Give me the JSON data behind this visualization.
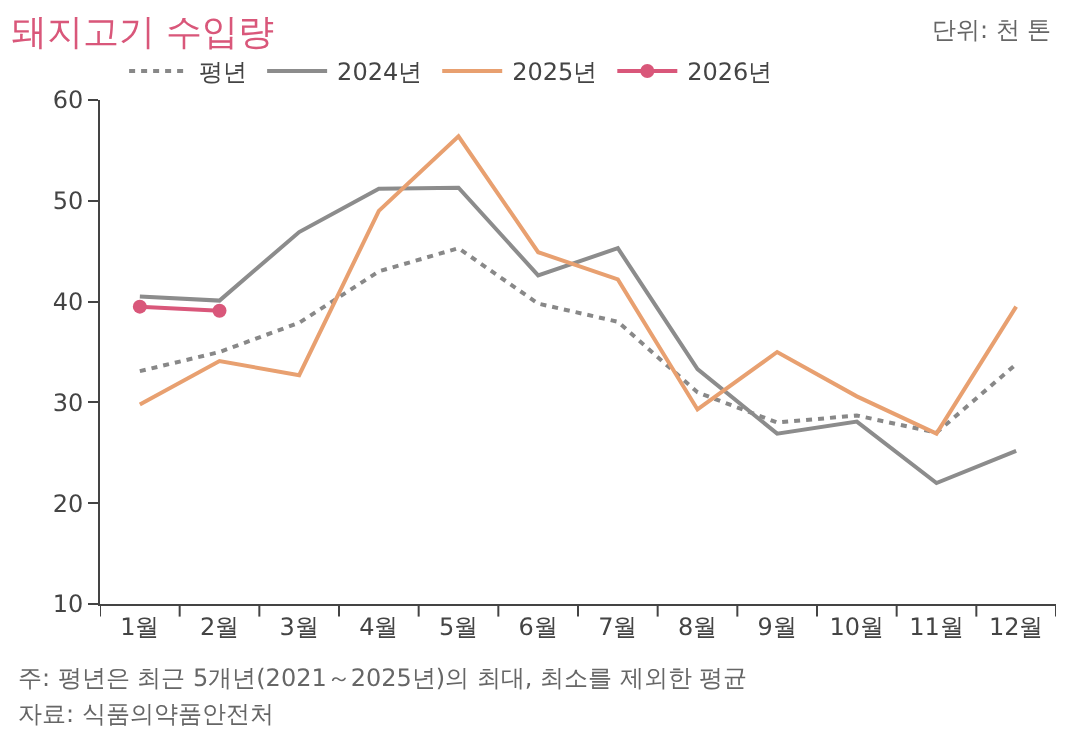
{
  "chart_data": {
    "type": "line",
    "title": "돼지고기 수입량",
    "categories": [
      "1월",
      "2월",
      "3월",
      "4월",
      "5월",
      "6월",
      "7월",
      "8월",
      "9월",
      "10월",
      "11월",
      "12월"
    ],
    "series": [
      {
        "name": "평년",
        "color": "#888888",
        "line_style": "dotted",
        "values": [
          33.1,
          35,
          37.9,
          43,
          45.3,
          39.8,
          38,
          31,
          28,
          28.7,
          27,
          33.8
        ]
      },
      {
        "name": "2024년",
        "color": "#8c8c8c",
        "values": [
          40.5,
          40.1,
          46.9,
          51.2,
          51.3,
          42.6,
          45.3,
          33.3,
          26.9,
          28.1,
          22.0,
          25.2
        ]
      },
      {
        "name": "2025년",
        "color": "#e8a070",
        "values": [
          29.8,
          34.1,
          32.7,
          49,
          56.4,
          44.9,
          42.2,
          29.3,
          35,
          30.6,
          26.9,
          39.5
        ]
      },
      {
        "name": "2026년",
        "color": "#d9577a",
        "marker": "circle",
        "values": [
          39.5,
          39.1,
          null,
          null,
          null,
          null,
          null,
          null,
          null,
          null,
          null,
          null
        ]
      }
    ],
    "ylim": [
      10,
      60
    ],
    "yticks": [
      10,
      20,
      30,
      40,
      50,
      60
    ],
    "legend": "top left",
    "marker": "none",
    "line_style": "solid",
    "annotations": [
      "단위: 천 톤",
      "주: 평년은 최근 5개년(2021～2025년)의 최대, 최소를 제외한 평균",
      "자료: 식품의약품안전처"
    ]
  }
}
